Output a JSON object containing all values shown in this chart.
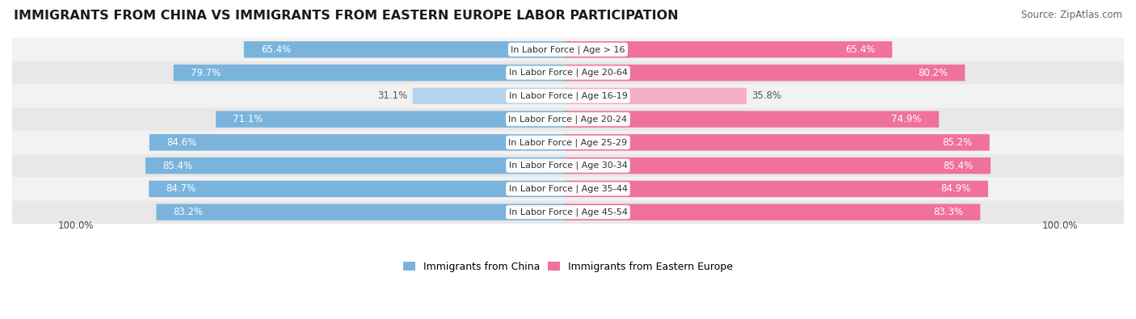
{
  "title": "IMMIGRANTS FROM CHINA VS IMMIGRANTS FROM EASTERN EUROPE LABOR PARTICIPATION",
  "source": "Source: ZipAtlas.com",
  "categories": [
    "In Labor Force | Age > 16",
    "In Labor Force | Age 20-64",
    "In Labor Force | Age 16-19",
    "In Labor Force | Age 20-24",
    "In Labor Force | Age 25-29",
    "In Labor Force | Age 30-34",
    "In Labor Force | Age 35-44",
    "In Labor Force | Age 45-54"
  ],
  "china_values": [
    65.4,
    79.7,
    31.1,
    71.1,
    84.6,
    85.4,
    84.7,
    83.2
  ],
  "europe_values": [
    65.4,
    80.2,
    35.8,
    74.9,
    85.2,
    85.4,
    84.9,
    83.3
  ],
  "china_color": "#7ab4dc",
  "china_color_light": "#b8d4ec",
  "europe_color": "#f0729a",
  "europe_color_light": "#f5b0c8",
  "row_bg_even": "#f2f2f2",
  "row_bg_odd": "#e8e8e8",
  "max_value": 100.0,
  "label_color_dark": "#555555",
  "label_color_white": "#ffffff",
  "title_fontsize": 11.5,
  "source_fontsize": 8.5,
  "bar_label_fontsize": 8.5,
  "category_fontsize": 8.0,
  "legend_fontsize": 9,
  "bar_height": 0.7,
  "background_color": "#ffffff",
  "light_rows": [
    2
  ]
}
